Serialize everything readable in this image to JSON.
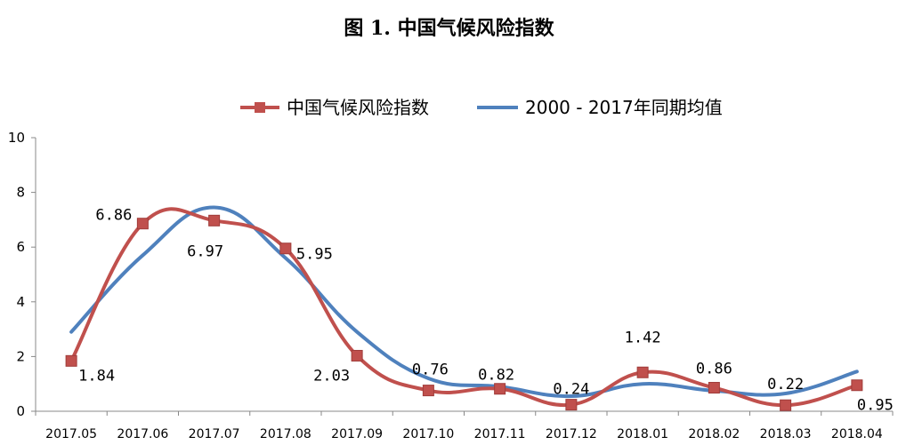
{
  "figure_title": "图 1.  中国气候风险指数",
  "chart_data": {
    "type": "line",
    "categories": [
      "2017.05",
      "2017.06",
      "2017.07",
      "2017.08",
      "2017.09",
      "2017.10",
      "2017.11",
      "2017.12",
      "2018.01",
      "2018.02",
      "2018.03",
      "2018.04"
    ],
    "ylim": [
      0,
      10
    ],
    "yticks": [
      "0",
      "2",
      "4",
      "6",
      "8",
      "10"
    ],
    "grid": false,
    "legend_position": "top-center",
    "series": [
      {
        "name": "中国气候风险指数",
        "color": "#c0504d",
        "marker": "square",
        "values": [
          1.84,
          6.86,
          6.97,
          5.95,
          2.03,
          0.76,
          0.82,
          0.24,
          1.42,
          0.86,
          0.22,
          0.95
        ],
        "labels": [
          "1.84",
          "6.86",
          "6.97",
          "5.95",
          "2.03",
          "0.76",
          "0.82",
          "0.24",
          "1.42",
          "0.86",
          "0.22",
          "0.95"
        ]
      },
      {
        "name": "2000 - 2017年同期均值",
        "color": "#4f81bd",
        "marker": "none",
        "values": [
          2.9,
          5.7,
          7.45,
          5.6,
          2.9,
          1.2,
          0.9,
          0.55,
          1.0,
          0.75,
          0.65,
          1.45
        ]
      }
    ]
  }
}
